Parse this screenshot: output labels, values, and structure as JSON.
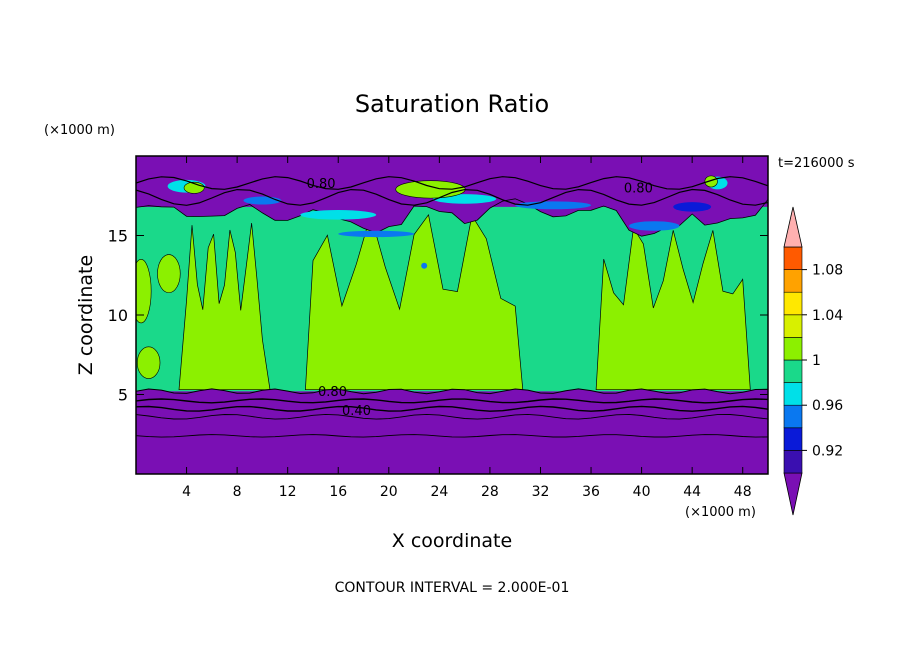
{
  "chart_data": {
    "type": "heatmap",
    "title": "Saturation Ratio",
    "xlabel": "X coordinate",
    "ylabel": "Z coordinate",
    "x_unit": "(×1000 m)",
    "y_unit": "(×1000 m)",
    "time_label": "t=216000 s",
    "footer": "CONTOUR INTERVAL = 2.000E-01",
    "xlim": [
      0,
      50
    ],
    "ylim": [
      0,
      20
    ],
    "x_ticks": [
      "4",
      "8",
      "12",
      "16",
      "20",
      "24",
      "28",
      "32",
      "36",
      "40",
      "44",
      "48"
    ],
    "y_ticks": [
      "5",
      "10",
      "15"
    ],
    "colorbar_levels": [
      0.9,
      0.92,
      0.94,
      0.96,
      0.98,
      1.0,
      1.02,
      1.04,
      1.06,
      1.08,
      1.1
    ],
    "colorbar_labels": [
      "0.92",
      "0.96",
      "1",
      "1.04",
      "1.08"
    ],
    "colorbar_colors": [
      "#7a0fb4",
      "#3a0fb0",
      "#0a1ad8",
      "#0a78f0",
      "#00e0e8",
      "#1ad98a",
      "#8cf000",
      "#d8f000",
      "#ffe800",
      "#ffa200",
      "#ff5a00",
      "#ff2a1a",
      "#ffb0b0"
    ],
    "contour_labels": [
      "0.80",
      "0.80",
      "0.80",
      "0.40"
    ],
    "regions": {
      "upper_dry_top": 19.8,
      "upper_dry_bottom": 16.5,
      "moist_layer_top": 16.8,
      "moist_layer_bottom": 5.2,
      "lower_dry_top": 5.2,
      "green_plumes_x": [
        [
          4,
          10
        ],
        [
          14,
          30
        ],
        [
          37,
          48
        ]
      ]
    },
    "grid": false,
    "legend_position": "right"
  }
}
